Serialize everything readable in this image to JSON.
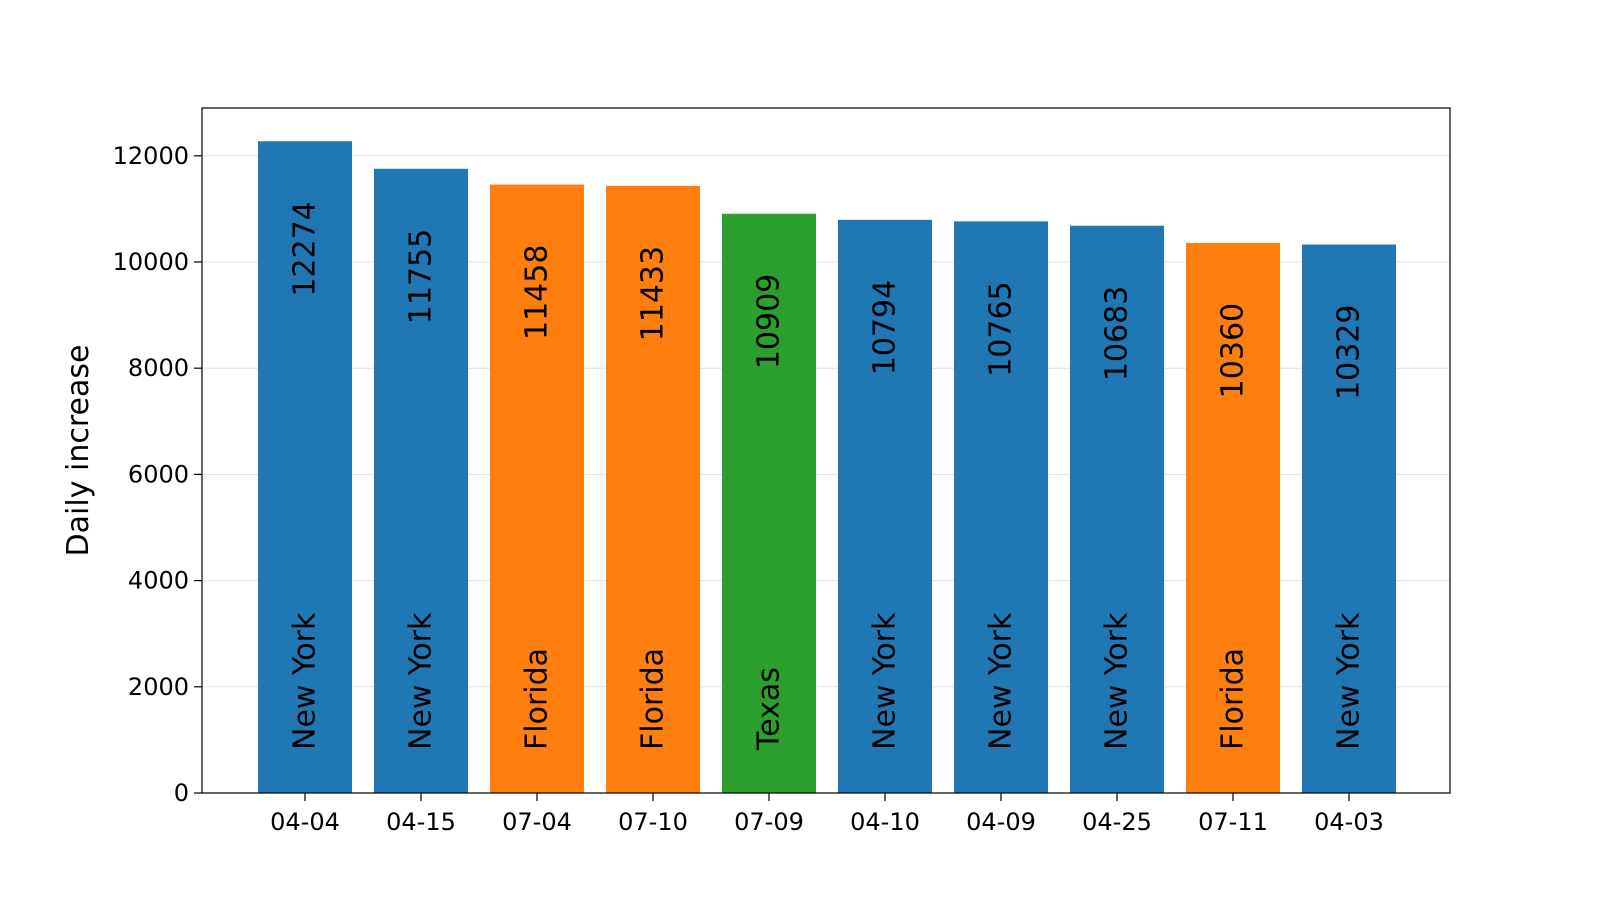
{
  "chart_data": {
    "type": "bar",
    "title": "",
    "xlabel": "",
    "ylabel": "Daily increase",
    "ylim": [
      0,
      12900
    ],
    "yticks": [
      0,
      2000,
      4000,
      6000,
      8000,
      10000,
      12000
    ],
    "grid": "horizontal",
    "categories": [
      "04-04",
      "04-15",
      "07-04",
      "07-10",
      "07-09",
      "04-10",
      "04-09",
      "04-25",
      "07-11",
      "04-03"
    ],
    "values": [
      12274,
      11755,
      11458,
      11433,
      10909,
      10794,
      10765,
      10683,
      10360,
      10329
    ],
    "value_labels": [
      "12274",
      "11755",
      "11458",
      "11433",
      "10909",
      "10794",
      "10765",
      "10683",
      "10360",
      "10329"
    ],
    "bar_labels": [
      "New York",
      "New York",
      "Florida",
      "Florida",
      "Texas",
      "New York",
      "New York",
      "New York",
      "Florida",
      "New York"
    ],
    "bar_colors": [
      "#1f77b4",
      "#1f77b4",
      "#ff7f0e",
      "#ff7f0e",
      "#2ca02c",
      "#1f77b4",
      "#1f77b4",
      "#1f77b4",
      "#ff7f0e",
      "#1f77b4"
    ]
  }
}
